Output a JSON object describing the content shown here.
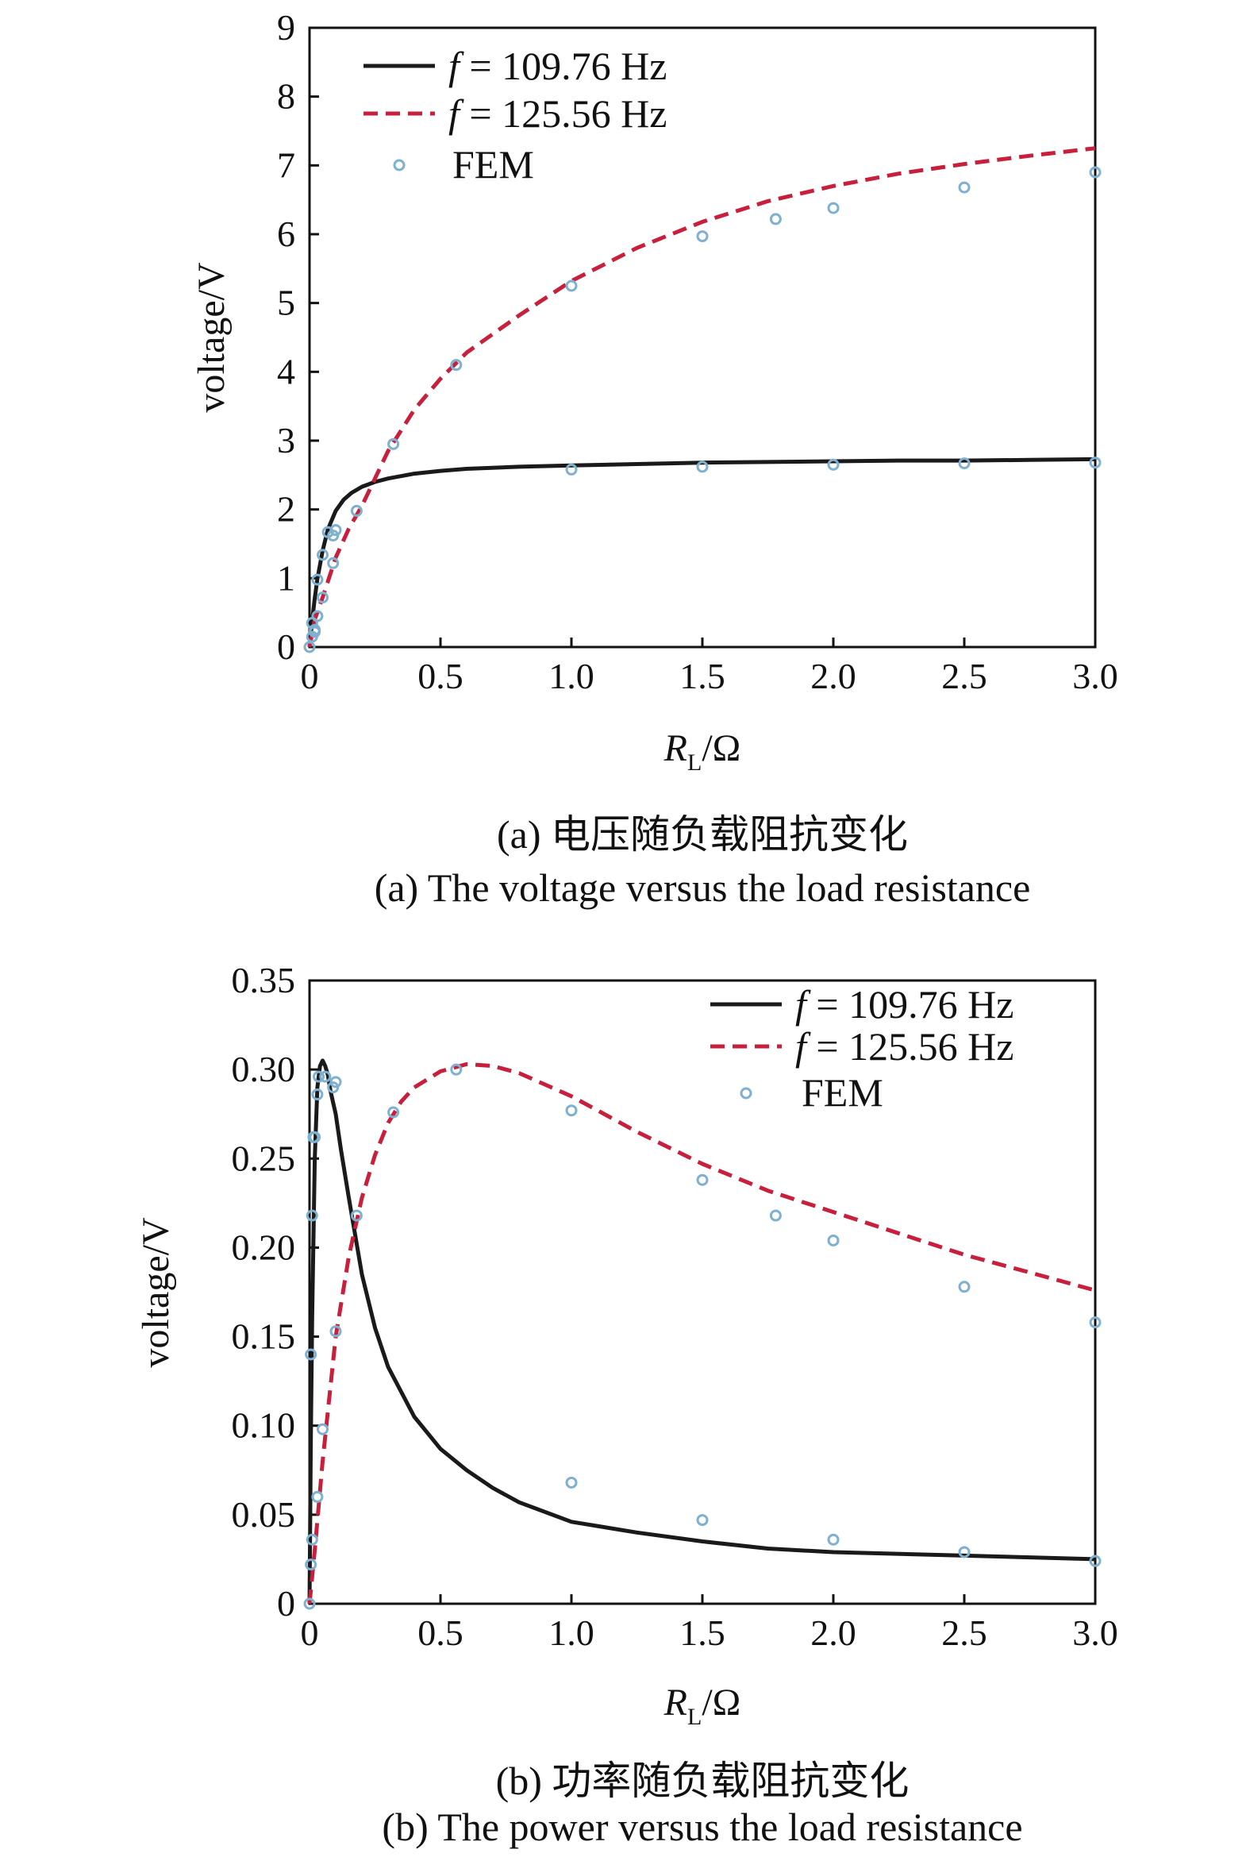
{
  "chart_data": [
    {
      "type": "line",
      "ylabel": "voltage/V",
      "xlabel_main": "R",
      "xlabel_sub": "L",
      "xlabel_unit": "/Ω",
      "xlim": [
        0,
        3.0
      ],
      "ylim": [
        0,
        9
      ],
      "xticks": [
        "0",
        "0.5",
        "1.0",
        "1.5",
        "2.0",
        "2.5",
        "3.0"
      ],
      "yticks": [
        "0",
        "1",
        "2",
        "3",
        "4",
        "5",
        "6",
        "7",
        "8",
        "9"
      ],
      "legend_position": "top-left",
      "caption_cn": "(a) 电压随负载阻抗变化",
      "caption_en": "(a) The voltage versus the load resistance",
      "series": [
        {
          "name": "f = 109.76 Hz",
          "name_italic": "f",
          "name_rest": " = 109.76 Hz",
          "style": "solid",
          "color": "#1a1a1a",
          "x": [
            0,
            0.01,
            0.02,
            0.03,
            0.05,
            0.07,
            0.1,
            0.13,
            0.16,
            0.2,
            0.25,
            0.3,
            0.4,
            0.5,
            0.6,
            0.8,
            1.0,
            1.25,
            1.5,
            1.75,
            2.0,
            2.25,
            2.5,
            2.75,
            3.0
          ],
          "y": [
            0,
            0.38,
            0.71,
            0.99,
            1.4,
            1.71,
            1.98,
            2.14,
            2.24,
            2.33,
            2.4,
            2.45,
            2.52,
            2.56,
            2.59,
            2.62,
            2.64,
            2.66,
            2.68,
            2.69,
            2.7,
            2.71,
            2.71,
            2.72,
            2.73
          ]
        },
        {
          "name": "f = 125.56 Hz",
          "name_italic": "f",
          "name_rest": " = 125.56 Hz",
          "style": "dashed",
          "color": "#c8203c",
          "x": [
            0,
            0.02,
            0.05,
            0.1,
            0.15,
            0.2,
            0.3,
            0.4,
            0.5,
            0.6,
            0.8,
            1.0,
            1.25,
            1.5,
            1.75,
            2.0,
            2.25,
            2.5,
            2.75,
            3.0
          ],
          "y": [
            0,
            0.4,
            0.72,
            1.3,
            1.72,
            2.05,
            2.85,
            3.45,
            3.9,
            4.28,
            4.82,
            5.32,
            5.8,
            6.18,
            6.48,
            6.7,
            6.88,
            7.02,
            7.14,
            7.25
          ]
        },
        {
          "name": "FEM",
          "style": "marker",
          "color": "#7fb0d0",
          "x": [
            0,
            0.01,
            0.02,
            0.03,
            0.05,
            0.07,
            0.09,
            0.1,
            0.01,
            0.02,
            0.03,
            0.05,
            0.09,
            0.18,
            0.32,
            0.56,
            1.0,
            1.5,
            1.78,
            2.0,
            2.5,
            3.0,
            1.0,
            1.5,
            2.0,
            2.5,
            3.0
          ],
          "y": [
            0,
            0.35,
            0.25,
            0.98,
            1.34,
            1.67,
            1.62,
            1.7,
            0.15,
            0.22,
            0.45,
            0.72,
            1.22,
            1.98,
            2.95,
            4.1,
            5.25,
            5.97,
            6.22,
            6.38,
            6.68,
            6.9,
            2.58,
            2.62,
            2.65,
            2.67,
            2.68
          ]
        }
      ]
    },
    {
      "type": "line",
      "ylabel": "voltage/V",
      "xlabel_main": "R",
      "xlabel_sub": "L",
      "xlabel_unit": "/Ω",
      "xlim": [
        0,
        3.0
      ],
      "ylim": [
        0,
        0.35
      ],
      "xticks": [
        "0",
        "0.5",
        "1.0",
        "1.5",
        "2.0",
        "2.5",
        "3.0"
      ],
      "yticks": [
        "0",
        "0.05",
        "0.10",
        "0.15",
        "0.20",
        "0.25",
        "0.30",
        "0.35"
      ],
      "legend_position": "top-right",
      "caption_cn": "(b) 功率随负载阻抗变化",
      "caption_en": "(b) The power versus the load resistance",
      "series": [
        {
          "name": "f = 109.76 Hz",
          "name_italic": "f",
          "name_rest": " = 109.76 Hz",
          "style": "solid",
          "color": "#1a1a1a",
          "x": [
            0,
            0.005,
            0.01,
            0.02,
            0.03,
            0.04,
            0.05,
            0.06,
            0.07,
            0.08,
            0.1,
            0.12,
            0.15,
            0.2,
            0.25,
            0.3,
            0.4,
            0.5,
            0.6,
            0.7,
            0.8,
            1.0,
            1.25,
            1.5,
            1.75,
            2.0,
            2.5,
            3.0
          ],
          "y": [
            0,
            0.09,
            0.16,
            0.25,
            0.29,
            0.302,
            0.305,
            0.302,
            0.297,
            0.288,
            0.275,
            0.255,
            0.228,
            0.185,
            0.155,
            0.133,
            0.105,
            0.087,
            0.075,
            0.065,
            0.057,
            0.046,
            0.04,
            0.035,
            0.031,
            0.029,
            0.027,
            0.025
          ]
        },
        {
          "name": "f = 125.56 Hz",
          "name_italic": "f",
          "name_rest": " = 125.56 Hz",
          "style": "dashed",
          "color": "#c8203c",
          "x": [
            0,
            0.02,
            0.05,
            0.1,
            0.15,
            0.2,
            0.25,
            0.3,
            0.35,
            0.4,
            0.5,
            0.6,
            0.7,
            0.8,
            1.0,
            1.25,
            1.5,
            1.75,
            2.0,
            2.25,
            2.5,
            2.75,
            3.0
          ],
          "y": [
            0,
            0.03,
            0.08,
            0.15,
            0.195,
            0.228,
            0.252,
            0.27,
            0.282,
            0.29,
            0.299,
            0.303,
            0.302,
            0.298,
            0.285,
            0.265,
            0.247,
            0.232,
            0.22,
            0.208,
            0.196,
            0.186,
            0.176
          ]
        },
        {
          "name": "FEM",
          "style": "marker",
          "color": "#7fb0d0",
          "x": [
            0,
            0.005,
            0.01,
            0.015,
            0.02,
            0.03,
            0.035,
            0.06,
            0.09,
            0.1,
            0.005,
            0.01,
            0.03,
            0.05,
            0.1,
            0.18,
            0.32,
            0.56,
            1.0,
            1.5,
            1.78,
            2.0,
            2.5,
            3.0,
            1.0,
            1.5,
            2.0,
            2.5,
            3.0
          ],
          "y": [
            0,
            0.14,
            0.218,
            0.262,
            0.262,
            0.286,
            0.296,
            0.296,
            0.29,
            0.293,
            0.022,
            0.036,
            0.06,
            0.098,
            0.153,
            0.218,
            0.276,
            0.3,
            0.277,
            0.238,
            0.218,
            0.204,
            0.178,
            0.158,
            0.068,
            0.047,
            0.036,
            0.029,
            0.024
          ]
        }
      ]
    }
  ]
}
